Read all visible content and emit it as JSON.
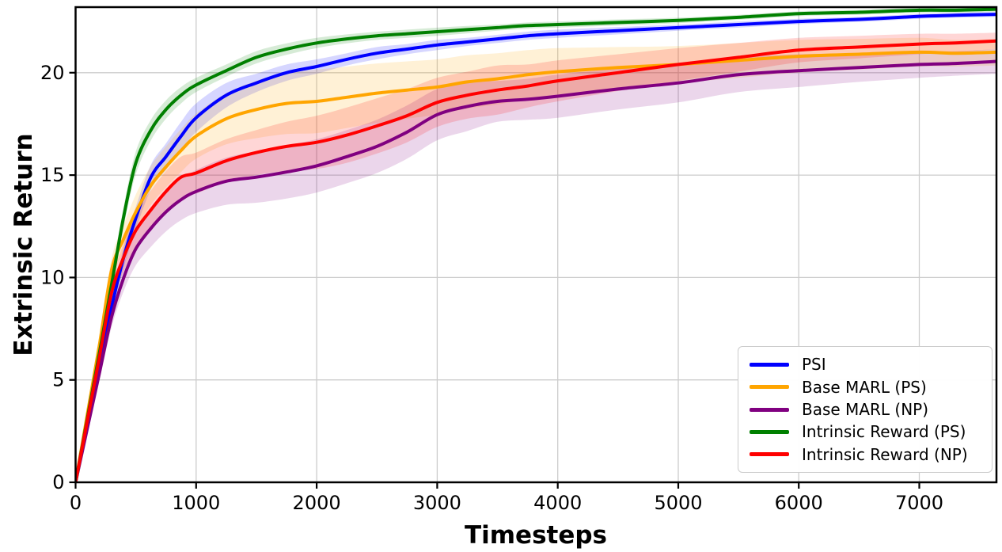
{
  "chart_data": {
    "type": "line",
    "title": "",
    "xlabel": "Timesteps",
    "ylabel": "Extrinsic Return",
    "xlim": [
      0,
      7640
    ],
    "ylim": [
      0,
      23.2
    ],
    "x_ticks": [
      0,
      1000,
      2000,
      3000,
      4000,
      5000,
      6000,
      7000
    ],
    "y_ticks": [
      0,
      5,
      10,
      15,
      20
    ],
    "grid": true,
    "grid_color": "#cccccc",
    "spine_color": "#000000",
    "legend_position": "lower right",
    "band_opacity": 0.16,
    "x": [
      0,
      100,
      200,
      300,
      400,
      500,
      625,
      750,
      875,
      1000,
      1250,
      1500,
      1750,
      2000,
      2250,
      2500,
      2750,
      3000,
      3250,
      3500,
      3750,
      4000,
      4500,
      5000,
      5500,
      6000,
      6500,
      7000,
      7300,
      7640
    ],
    "series": [
      {
        "name": "PSI",
        "color": "#0000ff",
        "values": [
          0,
          2.9,
          5.8,
          8.6,
          11.0,
          12.9,
          14.9,
          15.9,
          16.9,
          17.8,
          18.9,
          19.5,
          20.0,
          20.3,
          20.65,
          20.95,
          21.15,
          21.35,
          21.5,
          21.65,
          21.8,
          21.9,
          22.05,
          22.2,
          22.35,
          22.5,
          22.6,
          22.75,
          22.8,
          22.85
        ],
        "band_halfwidth": [
          0.05,
          0.2,
          0.3,
          0.4,
          0.5,
          0.55,
          0.6,
          0.65,
          0.7,
          0.7,
          0.6,
          0.45,
          0.4,
          0.35,
          0.3,
          0.3,
          0.25,
          0.25,
          0.2,
          0.2,
          0.2,
          0.2,
          0.18,
          0.15,
          0.15,
          0.13,
          0.12,
          0.12,
          0.12,
          0.12
        ]
      },
      {
        "name": "Base MARL (PS)",
        "color": "#ffa500",
        "values": [
          0,
          3.4,
          6.8,
          10.4,
          11.9,
          13.2,
          14.5,
          15.4,
          16.2,
          16.9,
          17.75,
          18.2,
          18.5,
          18.6,
          18.8,
          19.0,
          19.15,
          19.3,
          19.55,
          19.7,
          19.9,
          20.05,
          20.25,
          20.4,
          20.6,
          20.8,
          20.9,
          21.0,
          20.95,
          21.0
        ],
        "band_halfwidth": [
          0.05,
          0.25,
          0.4,
          0.55,
          0.7,
          0.85,
          0.95,
          1.0,
          1.05,
          1.1,
          1.25,
          1.4,
          1.5,
          1.55,
          1.5,
          1.45,
          1.4,
          1.35,
          1.3,
          1.25,
          1.2,
          1.15,
          1.0,
          0.9,
          0.85,
          0.8,
          0.75,
          0.7,
          0.65,
          0.65
        ]
      },
      {
        "name": "Base MARL (NP)",
        "color": "#800080",
        "values": [
          0,
          2.7,
          5.4,
          8.1,
          10.0,
          11.4,
          12.4,
          13.2,
          13.8,
          14.2,
          14.7,
          14.9,
          15.15,
          15.45,
          15.9,
          16.4,
          17.1,
          17.95,
          18.35,
          18.6,
          18.7,
          18.85,
          19.2,
          19.5,
          19.9,
          20.1,
          20.25,
          20.4,
          20.45,
          20.55
        ],
        "band_halfwidth": [
          0.05,
          0.2,
          0.35,
          0.5,
          0.65,
          0.8,
          0.9,
          0.95,
          1.0,
          1.05,
          1.15,
          1.25,
          1.3,
          1.3,
          1.3,
          1.3,
          1.3,
          1.25,
          1.2,
          1.0,
          1.0,
          1.05,
          1.0,
          0.95,
          0.85,
          0.8,
          0.7,
          0.65,
          0.6,
          0.6
        ]
      },
      {
        "name": "Intrinsic Reward (PS)",
        "color": "#008000",
        "values": [
          0,
          3.2,
          6.4,
          9.7,
          13.0,
          15.6,
          17.2,
          18.2,
          18.9,
          19.4,
          20.1,
          20.75,
          21.15,
          21.45,
          21.65,
          21.8,
          21.9,
          22.0,
          22.1,
          22.2,
          22.3,
          22.35,
          22.45,
          22.55,
          22.7,
          22.88,
          22.95,
          23.05,
          23.05,
          23.1
        ],
        "band_halfwidth": [
          0.05,
          0.2,
          0.3,
          0.4,
          0.5,
          0.55,
          0.5,
          0.45,
          0.4,
          0.35,
          0.3,
          0.3,
          0.28,
          0.25,
          0.22,
          0.2,
          0.2,
          0.2,
          0.18,
          0.15,
          0.15,
          0.15,
          0.15,
          0.13,
          0.12,
          0.12,
          0.12,
          0.12,
          0.12,
          0.12
        ]
      },
      {
        "name": "Intrinsic Reward (NP)",
        "color": "#ff0000",
        "values": [
          0,
          3.1,
          6.2,
          9.3,
          11.0,
          12.3,
          13.3,
          14.2,
          14.9,
          15.1,
          15.7,
          16.1,
          16.4,
          16.6,
          16.95,
          17.4,
          17.9,
          18.55,
          18.9,
          19.15,
          19.35,
          19.6,
          20.0,
          20.4,
          20.75,
          21.1,
          21.25,
          21.4,
          21.45,
          21.55
        ],
        "band_halfwidth": [
          0.05,
          0.25,
          0.4,
          0.55,
          0.7,
          0.85,
          0.95,
          1.0,
          1.0,
          1.0,
          1.05,
          1.1,
          1.2,
          1.3,
          1.35,
          1.35,
          1.3,
          1.2,
          1.15,
          1.2,
          1.05,
          1.0,
          0.9,
          0.8,
          0.7,
          0.6,
          0.55,
          0.5,
          0.45,
          0.4
        ]
      }
    ]
  }
}
